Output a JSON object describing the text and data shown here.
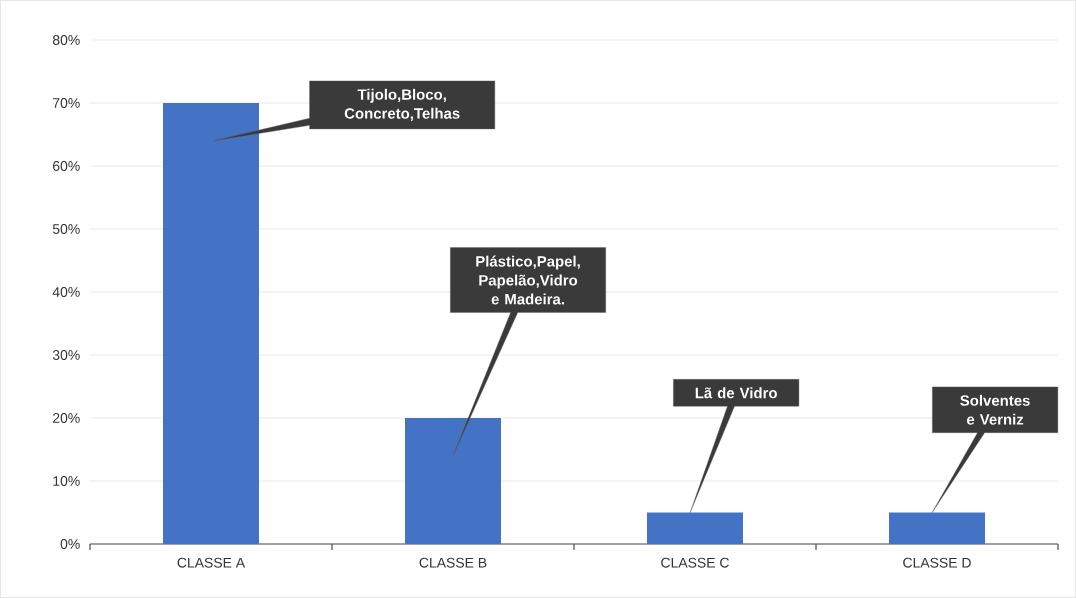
{
  "chart_data": {
    "type": "bar",
    "categories": [
      "CLASSE A",
      "CLASSE B",
      "CLASSE C",
      "CLASSE D"
    ],
    "values": [
      70,
      20,
      5,
      5
    ],
    "color": "#4472c4",
    "ylim": [
      0,
      80
    ],
    "yticks": [
      {
        "value": 0,
        "label": "0%"
      },
      {
        "value": 10,
        "label": "10%"
      },
      {
        "value": 20,
        "label": "20%"
      },
      {
        "value": 30,
        "label": "30%"
      },
      {
        "value": 40,
        "label": "40%"
      },
      {
        "value": 50,
        "label": "50%"
      },
      {
        "value": 60,
        "label": "60%"
      },
      {
        "value": 70,
        "label": "70%"
      },
      {
        "value": 80,
        "label": "80%"
      }
    ],
    "grid": "y",
    "annotations": [
      "Tijolo,Bloco, Concreto,Telhas",
      "Plástico,Papel, Papelão,Vidro e Madeira.",
      "Lã de Vidro",
      "Solventes e Verniz"
    ]
  }
}
